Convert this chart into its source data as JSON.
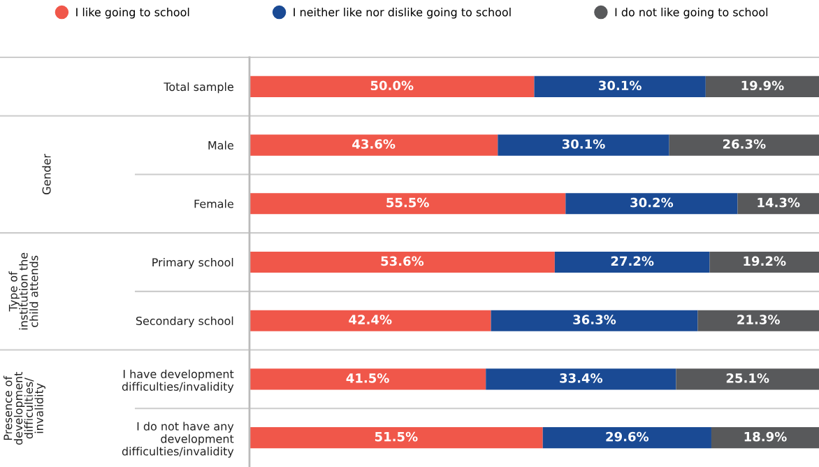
{
  "chart_data": {
    "type": "bar",
    "orientation": "horizontal",
    "stacked": true,
    "legend": "top",
    "grid": false,
    "categories": [
      "Total sample",
      "Male",
      "Female",
      "Primary school",
      "Secondary school",
      "I have development\ndifficulties/invalidity",
      "I do not have any\ndevelopment\ndifficulties/invalidity"
    ],
    "series": [
      {
        "name": "I like going to school",
        "color": "#f0574a",
        "values": [
          50.0,
          43.6,
          55.5,
          53.6,
          42.4,
          41.5,
          51.5
        ],
        "value_labels": [
          "50.0%",
          "43.6%",
          "55.5%",
          "53.6%",
          "42.4%",
          "41.5%",
          "51.5%"
        ]
      },
      {
        "name": "I neither like nor dislike going to school",
        "color": "#1a4a94",
        "values": [
          30.1,
          30.1,
          30.2,
          27.2,
          36.3,
          33.4,
          29.6
        ],
        "value_labels": [
          "30.1%",
          "30.1%",
          "30.2%",
          "27.2%",
          "36.3%",
          "33.4%",
          "29.6%"
        ]
      },
      {
        "name": "I do not like going to school",
        "color": "#58595b",
        "values": [
          19.9,
          26.3,
          14.3,
          19.2,
          21.3,
          25.1,
          18.9
        ],
        "value_labels": [
          "19.9%",
          "26.3%",
          "14.3%",
          "19.2%",
          "21.3%",
          "25.1%",
          "18.9%"
        ]
      }
    ],
    "annotations": [
      "Gender",
      "Type of\ninstitution the\nchild attends",
      "Presence of\ndevelopment\ndifficulties/\ninvalidity"
    ]
  }
}
